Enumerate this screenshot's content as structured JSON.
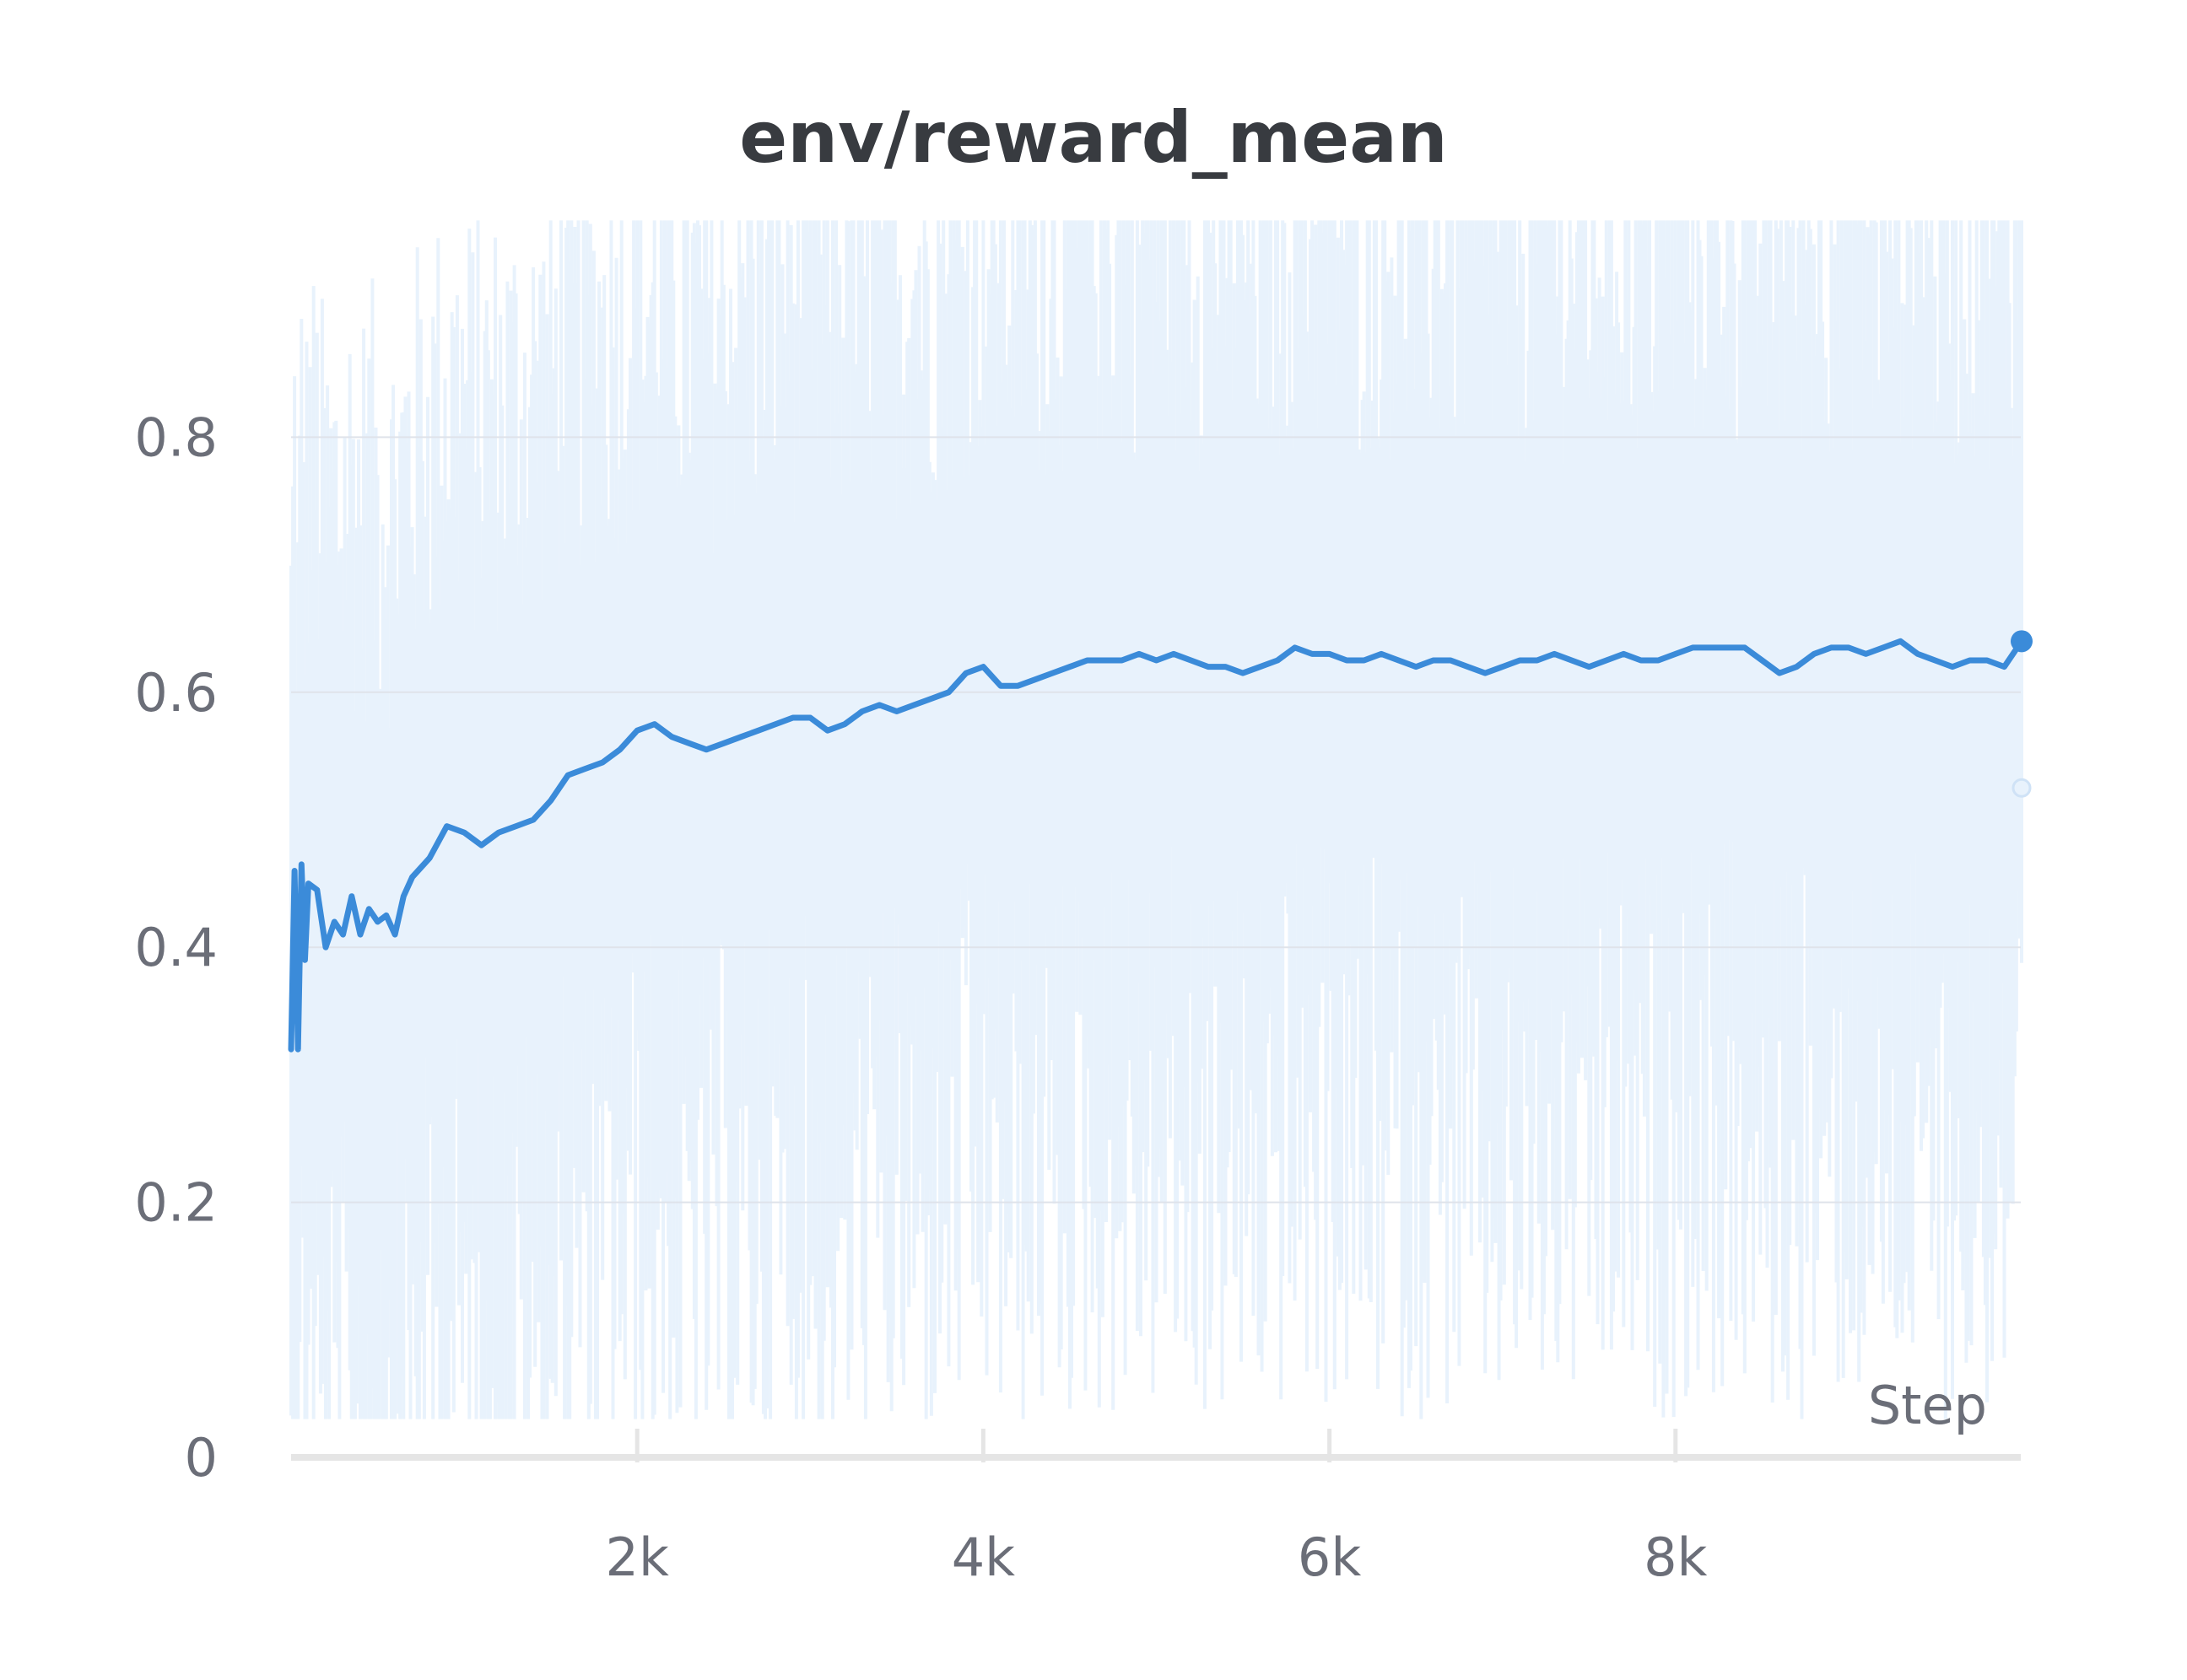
{
  "chart_data": {
    "type": "line",
    "title": "env/reward_mean",
    "xlabel": "Step",
    "ylabel": "",
    "xlim": [
      0,
      10000
    ],
    "ylim": [
      0,
      0.95
    ],
    "x_ticks": [
      {
        "value": 2000,
        "label": "2k"
      },
      {
        "value": 4000,
        "label": "4k"
      },
      {
        "value": 6000,
        "label": "6k"
      },
      {
        "value": 8000,
        "label": "8k"
      }
    ],
    "y_ticks": [
      {
        "value": 0,
        "label": "0"
      },
      {
        "value": 0.2,
        "label": "0.2"
      },
      {
        "value": 0.4,
        "label": "0.4"
      },
      {
        "value": 0.6,
        "label": "0.6"
      },
      {
        "value": 0.8,
        "label": "0.8"
      }
    ],
    "grid": true,
    "series": [
      {
        "role": "smoothed",
        "color": "#3b8bd9",
        "x": [
          0,
          20,
          40,
          60,
          80,
          100,
          150,
          200,
          250,
          300,
          350,
          400,
          450,
          500,
          550,
          600,
          650,
          700,
          800,
          900,
          1000,
          1100,
          1200,
          1300,
          1400,
          1500,
          1600,
          1700,
          1800,
          1900,
          2000,
          2100,
          2200,
          2300,
          2400,
          2500,
          2600,
          2700,
          2800,
          2900,
          3000,
          3100,
          3200,
          3300,
          3400,
          3500,
          3600,
          3700,
          3800,
          3900,
          4000,
          4100,
          4200,
          4300,
          4400,
          4500,
          4600,
          4700,
          4800,
          4900,
          5000,
          5100,
          5200,
          5300,
          5400,
          5500,
          5600,
          5700,
          5800,
          5900,
          6000,
          6100,
          6200,
          6300,
          6400,
          6500,
          6600,
          6700,
          6800,
          6900,
          7000,
          7100,
          7200,
          7300,
          7400,
          7500,
          7600,
          7700,
          7800,
          7900,
          8000,
          8100,
          8200,
          8300,
          8400,
          8500,
          8600,
          8700,
          8800,
          8900,
          9000,
          9100,
          9200,
          9300,
          9400,
          9500,
          9600,
          9700,
          9800,
          9900,
          10000
        ],
        "values": [
          0.32,
          0.46,
          0.32,
          0.465,
          0.39,
          0.45,
          0.445,
          0.4,
          0.42,
          0.41,
          0.44,
          0.41,
          0.43,
          0.42,
          0.425,
          0.41,
          0.44,
          0.455,
          0.47,
          0.495,
          0.49,
          0.48,
          0.49,
          0.495,
          0.5,
          0.515,
          0.535,
          0.54,
          0.545,
          0.555,
          0.57,
          0.575,
          0.565,
          0.56,
          0.555,
          0.56,
          0.565,
          0.57,
          0.575,
          0.58,
          0.58,
          0.57,
          0.575,
          0.585,
          0.59,
          0.585,
          0.59,
          0.595,
          0.6,
          0.615,
          0.62,
          0.605,
          0.605,
          0.61,
          0.615,
          0.62,
          0.625,
          0.625,
          0.625,
          0.63,
          0.625,
          0.63,
          0.625,
          0.62,
          0.62,
          0.615,
          0.62,
          0.625,
          0.635,
          0.63,
          0.63,
          0.625,
          0.625,
          0.63,
          0.625,
          0.62,
          0.625,
          0.625,
          0.62,
          0.615,
          0.62,
          0.625,
          0.625,
          0.63,
          0.625,
          0.62,
          0.625,
          0.63,
          0.625,
          0.625,
          0.63,
          0.635,
          0.635,
          0.635,
          0.635,
          0.625,
          0.615,
          0.62,
          0.63,
          0.635,
          0.635,
          0.63,
          0.635,
          0.64,
          0.63,
          0.625,
          0.62,
          0.625,
          0.625,
          0.62,
          0.64
        ]
      }
    ],
    "raw_band": {
      "role": "raw",
      "color": "#e8f2fc",
      "low": 0.03,
      "high": 0.97
    },
    "end_markers": [
      {
        "x": 10000,
        "value": 0.64,
        "role": "smoothed"
      },
      {
        "x": 10000,
        "value": 0.525,
        "role": "raw"
      }
    ]
  }
}
